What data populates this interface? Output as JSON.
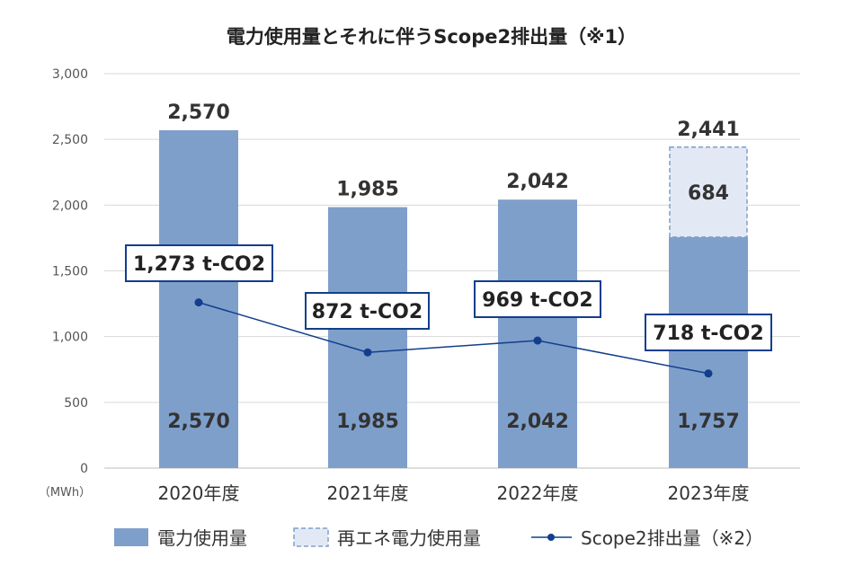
{
  "chart_data": {
    "type": "bar",
    "title": "電力使用量とそれに伴うScope2排出量（※1）",
    "y_unit": "（MWh）",
    "ylim": [
      0,
      3000
    ],
    "yticks": [
      0,
      500,
      1000,
      1500,
      2000,
      2500,
      3000
    ],
    "ytick_labels": [
      "0",
      "500",
      "1,000",
      "1,500",
      "2,000",
      "2,500",
      "3,000"
    ],
    "categories": [
      "2020年度",
      "2021年度",
      "2022年度",
      "2023年度"
    ],
    "totals": [
      "2,570",
      "1,985",
      "2,042",
      "2,441"
    ],
    "grid": true,
    "legend_position": "bottom",
    "series": [
      {
        "name": "電力使用量",
        "type": "bar",
        "color": "#7f9fcb",
        "values": [
          2570,
          1985,
          2042,
          1757
        ],
        "labels": [
          "2,570",
          "1,985",
          "2,042",
          "1,757"
        ]
      },
      {
        "name": "再エネ電力使用量",
        "type": "bar-stacked",
        "color": "#e3e9f4",
        "border": "#7f9fcb",
        "values": [
          0,
          0,
          0,
          684
        ],
        "labels": [
          "",
          "",
          "",
          "684"
        ]
      },
      {
        "name": "Scope2排出量（※2）",
        "type": "line",
        "color": "#123e8c",
        "values": [
          1273,
          872,
          969,
          718
        ],
        "plot_values": [
          1260,
          880,
          970,
          720
        ],
        "labels": [
          "1,273 t-CO2",
          "872 t-CO2",
          "969 t-CO2",
          "718 t-CO2"
        ]
      }
    ]
  }
}
